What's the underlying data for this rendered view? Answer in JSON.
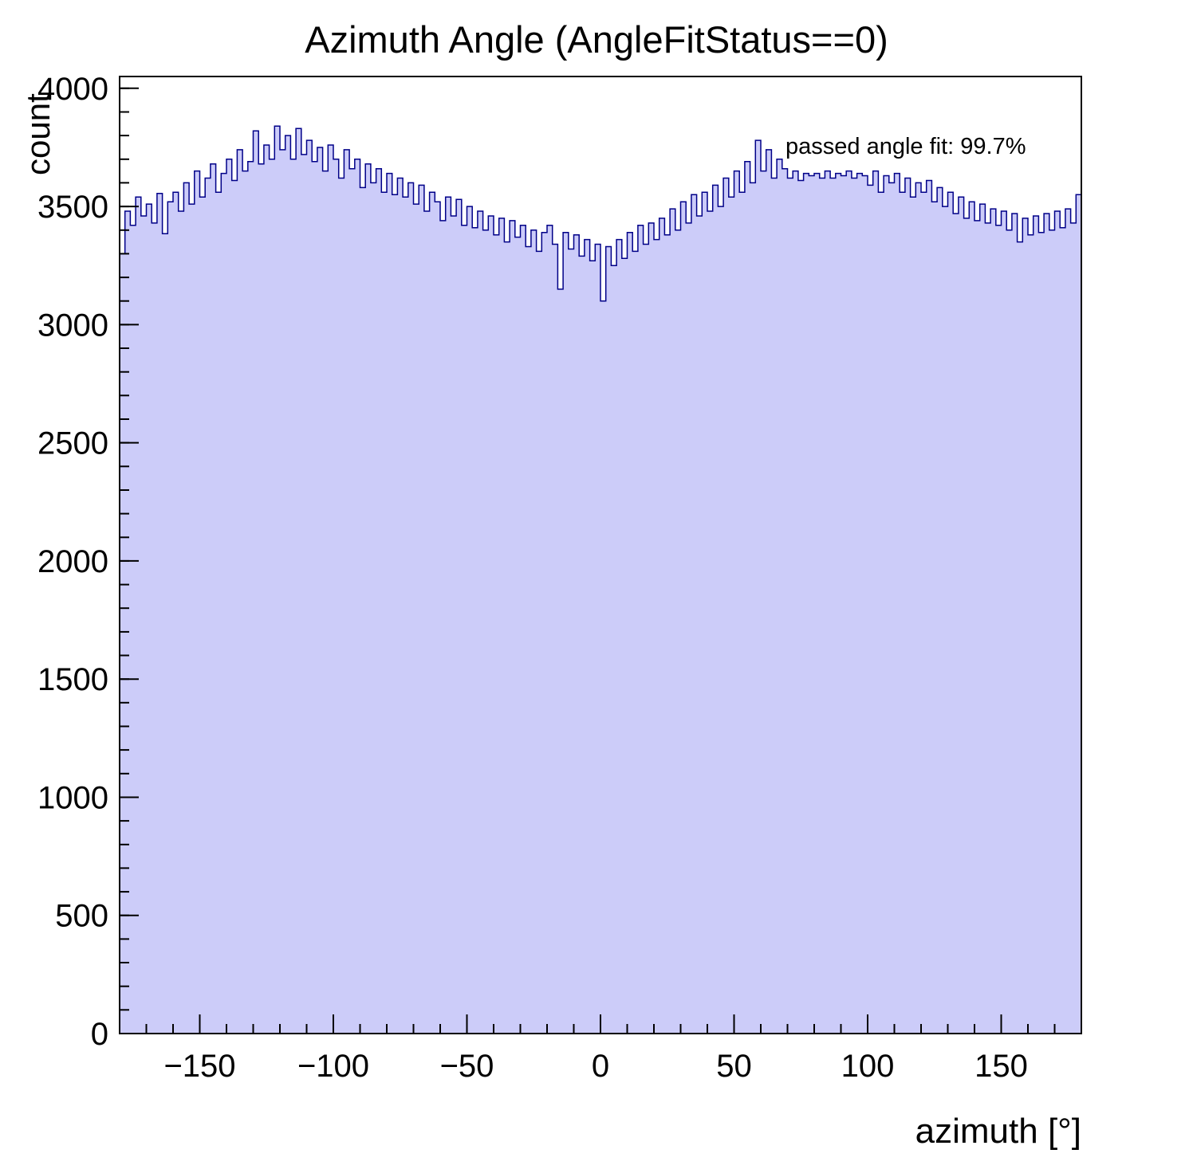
{
  "page": {
    "background": "#ffffff"
  },
  "chart_data": {
    "type": "bar",
    "subtype": "histogram",
    "title": "Azimuth Angle (AngleFitStatus==0)",
    "xlabel": "azimuth [°]",
    "ylabel": "count",
    "annotation": "passed angle fit: 99.7%",
    "xlim": [
      -180,
      180
    ],
    "ylim": [
      0,
      4000
    ],
    "ylim_frame": [
      0,
      4050
    ],
    "x_minor_step": 10,
    "y_minor_step": 100,
    "x_ticks": [
      {
        "value": -150,
        "label": "−150"
      },
      {
        "value": -100,
        "label": "−100"
      },
      {
        "value": -50,
        "label": "−50"
      },
      {
        "value": 0,
        "label": "0"
      },
      {
        "value": 50,
        "label": "50"
      },
      {
        "value": 100,
        "label": "100"
      },
      {
        "value": 150,
        "label": "150"
      }
    ],
    "y_ticks": [
      {
        "value": 0,
        "label": "0"
      },
      {
        "value": 500,
        "label": "500"
      },
      {
        "value": 1000,
        "label": "1000"
      },
      {
        "value": 1500,
        "label": "1500"
      },
      {
        "value": 2000,
        "label": "2000"
      },
      {
        "value": 2500,
        "label": "2500"
      },
      {
        "value": 3000,
        "label": "3000"
      },
      {
        "value": 3500,
        "label": "3500"
      },
      {
        "value": 4000,
        "label": "4000"
      }
    ],
    "bin_start": -180,
    "bin_width": 2,
    "values": [
      3300,
      3480,
      3420,
      3540,
      3460,
      3510,
      3430,
      3555,
      3385,
      3520,
      3560,
      3480,
      3600,
      3510,
      3650,
      3540,
      3620,
      3680,
      3560,
      3640,
      3700,
      3610,
      3740,
      3650,
      3690,
      3820,
      3680,
      3760,
      3700,
      3840,
      3740,
      3800,
      3700,
      3830,
      3720,
      3780,
      3690,
      3750,
      3650,
      3760,
      3700,
      3620,
      3740,
      3660,
      3700,
      3580,
      3680,
      3600,
      3660,
      3560,
      3640,
      3550,
      3620,
      3540,
      3600,
      3510,
      3590,
      3480,
      3560,
      3520,
      3440,
      3540,
      3460,
      3530,
      3420,
      3500,
      3410,
      3480,
      3400,
      3460,
      3380,
      3450,
      3350,
      3440,
      3370,
      3420,
      3330,
      3400,
      3310,
      3390,
      3420,
      3340,
      3150,
      3390,
      3320,
      3380,
      3290,
      3360,
      3270,
      3340,
      3100,
      3330,
      3250,
      3360,
      3280,
      3390,
      3310,
      3420,
      3340,
      3430,
      3360,
      3450,
      3380,
      3490,
      3400,
      3520,
      3430,
      3550,
      3460,
      3560,
      3480,
      3590,
      3500,
      3620,
      3540,
      3650,
      3560,
      3690,
      3600,
      3780,
      3650,
      3740,
      3620,
      3700,
      3660,
      3620,
      3650,
      3610,
      3640,
      3630,
      3640,
      3620,
      3650,
      3620,
      3640,
      3630,
      3650,
      3620,
      3640,
      3630,
      3590,
      3650,
      3560,
      3630,
      3600,
      3640,
      3560,
      3620,
      3540,
      3600,
      3560,
      3610,
      3520,
      3580,
      3500,
      3560,
      3470,
      3540,
      3450,
      3520,
      3440,
      3510,
      3430,
      3490,
      3420,
      3480,
      3400,
      3470,
      3350,
      3450,
      3380,
      3460,
      3390,
      3470,
      3400,
      3480,
      3410,
      3490,
      3430,
      3550
    ],
    "fill_color": "#ccccf9",
    "line_color": "#000088",
    "frame_color": "#000000",
    "legend_position": "top-right",
    "grid": false
  }
}
